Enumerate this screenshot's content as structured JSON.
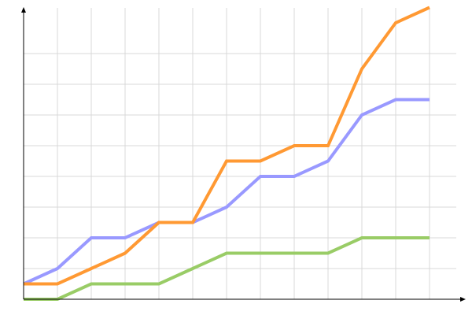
{
  "chart_data": {
    "type": "line",
    "title": "",
    "xlabel": "",
    "ylabel": "",
    "x": [
      0,
      1,
      2,
      3,
      4,
      5,
      6,
      7,
      8,
      9,
      10,
      11,
      12
    ],
    "ylim": [
      0,
      9.5
    ],
    "grid": true,
    "legend": "none",
    "series": [
      {
        "color": "#9999ff",
        "values": [
          0.5,
          1,
          2,
          2,
          2.5,
          2.5,
          3,
          4,
          4,
          4.5,
          6,
          6.5,
          6.5
        ]
      },
      {
        "color": "#ff9933",
        "values": [
          0.5,
          0.5,
          1,
          1.5,
          2.5,
          2.5,
          4.5,
          4.5,
          5,
          5,
          7.5,
          9,
          9.5
        ]
      },
      {
        "color": "#99cc66",
        "values": [
          0,
          0,
          0.5,
          0.5,
          0.5,
          1,
          1.5,
          1.5,
          1.5,
          1.5,
          2,
          2,
          2
        ]
      }
    ]
  }
}
